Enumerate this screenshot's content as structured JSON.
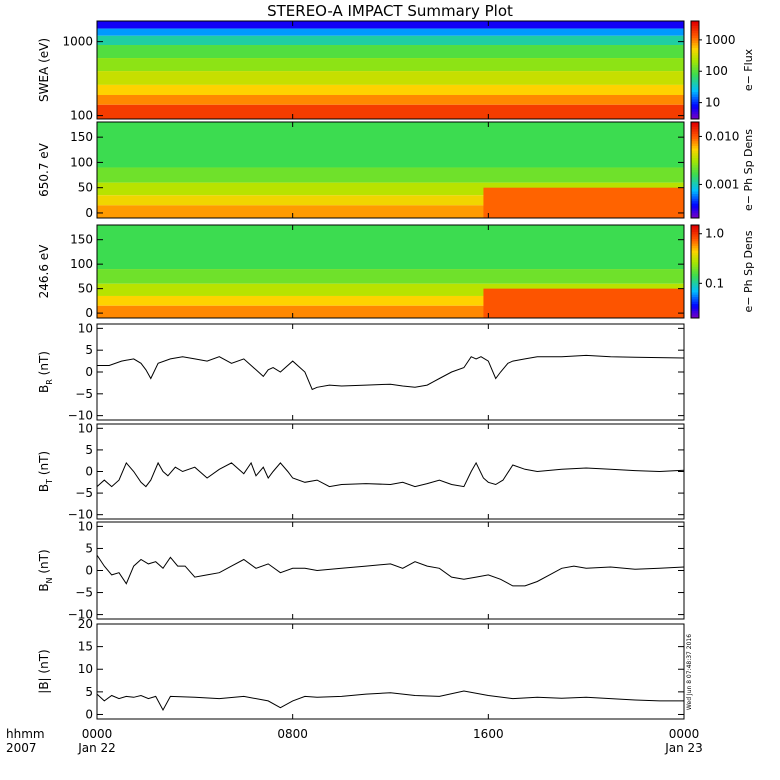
{
  "chart_data": {
    "title": "STEREO-A IMPACT Summary Plot",
    "x_axis": {
      "row1_labels": [
        "hhmm",
        "0000",
        "0800",
        "1600",
        "0000"
      ],
      "row2_labels": [
        "2007",
        "Jan 22",
        "",
        "",
        "Jan 23"
      ],
      "range_hours": [
        0,
        24
      ],
      "ticks_hours": [
        0,
        8,
        16,
        24
      ]
    },
    "timestamp": "Wed Jun  8 07:48:37 2016",
    "panels": [
      {
        "type": "heatmap",
        "name": "swea_spectrogram",
        "ylabel": "SWEA (eV)",
        "yscale": "log",
        "ylim": [
          90,
          1900
        ],
        "yticks": [
          "1000",
          "100"
        ],
        "ytick_values": [
          1000,
          100
        ],
        "colorbar": {
          "label": "e− Flux",
          "scale": "log",
          "ticks": [
            "1000",
            "100",
            "10"
          ],
          "tick_values": [
            1000,
            100,
            10
          ],
          "range": [
            3,
            4000
          ]
        },
        "bands": [
          {
            "y_from": 1900,
            "y_to": 1500,
            "level": 0.1
          },
          {
            "y_from": 1500,
            "y_to": 1200,
            "level": 0.25
          },
          {
            "y_from": 1200,
            "y_to": 900,
            "level": 0.37
          },
          {
            "y_from": 900,
            "y_to": 600,
            "level": 0.48
          },
          {
            "y_from": 600,
            "y_to": 400,
            "level": 0.56
          },
          {
            "y_from": 400,
            "y_to": 260,
            "level": 0.64
          },
          {
            "y_from": 260,
            "y_to": 190,
            "level": 0.72
          },
          {
            "y_from": 190,
            "y_to": 140,
            "level": 0.8
          },
          {
            "y_from": 140,
            "y_to": 90,
            "level": 0.9
          }
        ]
      },
      {
        "type": "heatmap",
        "name": "pitch_angle_650",
        "ylabel": "650.7 eV",
        "ylim": [
          -10,
          180
        ],
        "yticks": [
          "150",
          "100",
          "50",
          "0"
        ],
        "ytick_values": [
          150,
          100,
          50,
          0
        ],
        "colorbar": {
          "label": "e− Ph Sp Dens",
          "scale": "log",
          "ticks": [
            "0.010",
            "0.001"
          ],
          "tick_values": [
            0.01,
            0.001
          ],
          "range": [
            0.0002,
            0.02
          ]
        },
        "bands": [
          {
            "y_from": 180,
            "y_to": 90,
            "level": 0.45
          },
          {
            "y_from": 90,
            "y_to": 60,
            "level": 0.52
          },
          {
            "y_from": 60,
            "y_to": 35,
            "level": 0.62
          },
          {
            "y_from": 35,
            "y_to": 15,
            "level": 0.7
          },
          {
            "y_from": 15,
            "y_to": -10,
            "level": 0.78
          }
        ],
        "late_band": {
          "hours_from": 15.8,
          "hours_to": 24,
          "y_from": 50,
          "y_to": -10,
          "level": 0.84
        }
      },
      {
        "type": "heatmap",
        "name": "pitch_angle_246",
        "ylabel": "246.6 eV",
        "ylim": [
          -10,
          180
        ],
        "yticks": [
          "150",
          "100",
          "50",
          "0"
        ],
        "ytick_values": [
          150,
          100,
          50,
          0
        ],
        "colorbar": {
          "label": "e− Ph Sp Dens",
          "scale": "log",
          "ticks": [
            "1.0",
            "0.1"
          ],
          "tick_values": [
            1.0,
            0.1
          ],
          "range": [
            0.02,
            1.5
          ]
        },
        "bands": [
          {
            "y_from": 180,
            "y_to": 90,
            "level": 0.45
          },
          {
            "y_from": 90,
            "y_to": 60,
            "level": 0.52
          },
          {
            "y_from": 60,
            "y_to": 35,
            "level": 0.62
          },
          {
            "y_from": 35,
            "y_to": 15,
            "level": 0.72
          },
          {
            "y_from": 15,
            "y_to": -10,
            "level": 0.8
          }
        ],
        "late_band": {
          "hours_from": 15.8,
          "hours_to": 24,
          "y_from": 50,
          "y_to": -10,
          "level": 0.86
        }
      },
      {
        "type": "line",
        "name": "br",
        "ylabel": "B",
        "ylabel_sub": "R",
        "yunit": "(nT)",
        "ylim": [
          -11,
          11
        ],
        "yticks": [
          "10",
          "5",
          "0",
          "−5",
          "−10"
        ],
        "ytick_values": [
          10,
          5,
          0,
          -5,
          -10
        ],
        "series": [
          {
            "x": [
              0,
              0.5,
              1.0,
              1.5,
              1.8,
              2.0,
              2.2,
              2.5,
              3.0,
              3.5,
              4.0,
              4.5,
              5.0,
              5.5,
              6.0,
              6.5,
              6.8,
              7.0,
              7.2,
              7.5,
              8.0,
              8.5,
              8.8,
              9.0,
              9.5,
              10,
              11,
              12,
              12.5,
              13,
              13.5,
              14,
              14.5,
              15,
              15.3,
              15.5,
              15.7,
              16,
              16.3,
              16.5,
              16.8,
              17,
              17.5,
              18,
              19,
              20,
              21,
              22,
              23,
              24
            ],
            "y": [
              1.5,
              1.5,
              2.5,
              3.0,
              2.0,
              0.5,
              -1.5,
              2.0,
              3.0,
              3.5,
              3.0,
              2.5,
              3.5,
              2.0,
              3.0,
              0.5,
              -1.0,
              0.5,
              1.0,
              0,
              2.5,
              0,
              -4.0,
              -3.5,
              -3.0,
              -3.2,
              -3.0,
              -2.8,
              -3.2,
              -3.5,
              -3.0,
              -1.5,
              0,
              1.0,
              3.5,
              3.0,
              3.5,
              2.5,
              -1.5,
              0,
              2.0,
              2.5,
              3.0,
              3.5,
              3.5,
              3.8,
              3.5,
              3.4,
              3.3,
              3.2
            ]
          }
        ]
      },
      {
        "type": "line",
        "name": "bt",
        "ylabel": "B",
        "ylabel_sub": "T",
        "yunit": "(nT)",
        "ylim": [
          -11,
          11
        ],
        "yticks": [
          "10",
          "5",
          "0",
          "−5",
          "−10"
        ],
        "ytick_values": [
          10,
          5,
          0,
          -5,
          -10
        ],
        "series": [
          {
            "x": [
              0,
              0.3,
              0.6,
              0.9,
              1.2,
              1.5,
              1.8,
              2.0,
              2.2,
              2.5,
              2.7,
              2.9,
              3.2,
              3.5,
              4.0,
              4.5,
              5.0,
              5.5,
              6.0,
              6.3,
              6.5,
              6.8,
              7.0,
              7.2,
              7.5,
              7.8,
              8.0,
              8.5,
              9.0,
              9.5,
              10,
              11,
              12,
              12.5,
              13,
              13.5,
              14,
              14.5,
              15,
              15.3,
              15.5,
              15.8,
              16,
              16.3,
              16.6,
              17,
              17.5,
              18,
              19,
              20,
              21,
              22,
              23,
              24
            ],
            "y": [
              -3.5,
              -2.0,
              -3.5,
              -2.0,
              2.0,
              0,
              -2.5,
              -3.5,
              -2.0,
              2.0,
              0,
              -1.0,
              1.0,
              0,
              1.0,
              -1.5,
              0.5,
              2.0,
              -0.5,
              2.0,
              -1.0,
              1.0,
              -1.5,
              0,
              2.0,
              0,
              -1.5,
              -2.5,
              -2.0,
              -3.5,
              -3.0,
              -2.8,
              -3.0,
              -2.5,
              -3.5,
              -2.8,
              -2.0,
              -3.0,
              -3.5,
              0,
              2.0,
              -1.5,
              -2.5,
              -3.0,
              -2.0,
              1.5,
              0.5,
              0,
              0.5,
              0.8,
              0.5,
              0.2,
              0,
              0.3
            ]
          }
        ]
      },
      {
        "type": "line",
        "name": "bn",
        "ylabel": "B",
        "ylabel_sub": "N",
        "yunit": "(nT)",
        "ylim": [
          -11,
          11
        ],
        "yticks": [
          "10",
          "5",
          "0",
          "−5",
          "−10"
        ],
        "ytick_values": [
          10,
          5,
          0,
          -5,
          -10
        ],
        "series": [
          {
            "x": [
              0,
              0.3,
              0.6,
              0.9,
              1.2,
              1.5,
              1.8,
              2.1,
              2.4,
              2.7,
              3.0,
              3.3,
              3.6,
              4.0,
              4.5,
              5.0,
              5.5,
              6.0,
              6.5,
              7.0,
              7.5,
              8.0,
              8.5,
              9.0,
              10,
              11,
              12,
              12.5,
              13,
              13.5,
              14,
              14.5,
              15,
              15.5,
              16,
              16.5,
              17,
              17.5,
              18,
              18.5,
              19,
              19.5,
              20,
              21,
              22,
              23,
              24
            ],
            "y": [
              3.5,
              1.0,
              -1.0,
              -0.5,
              -3.0,
              1.0,
              2.5,
              1.5,
              2.0,
              0.5,
              3.0,
              1.0,
              1.0,
              -1.5,
              -1.0,
              -0.5,
              1.0,
              2.5,
              0.5,
              1.5,
              -0.5,
              0.5,
              0.5,
              0,
              0.5,
              1.0,
              1.5,
              0.5,
              2.0,
              1.0,
              0.5,
              -1.5,
              -2.0,
              -1.5,
              -1.0,
              -2.0,
              -3.5,
              -3.5,
              -2.5,
              -1.0,
              0.5,
              1.0,
              0.5,
              0.8,
              0.3,
              0.5,
              0.8
            ]
          }
        ]
      },
      {
        "type": "line",
        "name": "b_magnitude",
        "ylabel": "|B| (nT)",
        "ylim": [
          -1,
          20
        ],
        "yticks": [
          "20",
          "15",
          "10",
          "5",
          "0"
        ],
        "ytick_values": [
          20,
          15,
          10,
          5,
          0
        ],
        "series": [
          {
            "x": [
              0,
              0.3,
              0.6,
              0.9,
              1.2,
              1.5,
              1.8,
              2.1,
              2.4,
              2.7,
              3.0,
              4.0,
              5.0,
              6.0,
              7.0,
              7.5,
              8.0,
              8.5,
              9.0,
              10,
              11,
              12,
              13,
              14,
              15,
              16,
              17,
              18,
              19,
              20,
              21,
              22,
              23,
              24
            ],
            "y": [
              4.5,
              3.0,
              4.2,
              3.5,
              4.0,
              3.8,
              4.2,
              3.5,
              4.0,
              1.0,
              4.0,
              3.8,
              3.5,
              4.0,
              3.0,
              1.5,
              3.0,
              4.0,
              3.8,
              4.0,
              4.5,
              4.8,
              4.2,
              4.0,
              5.2,
              4.2,
              3.5,
              3.8,
              3.6,
              3.8,
              3.5,
              3.2,
              3.0,
              3.0
            ]
          }
        ]
      }
    ]
  }
}
